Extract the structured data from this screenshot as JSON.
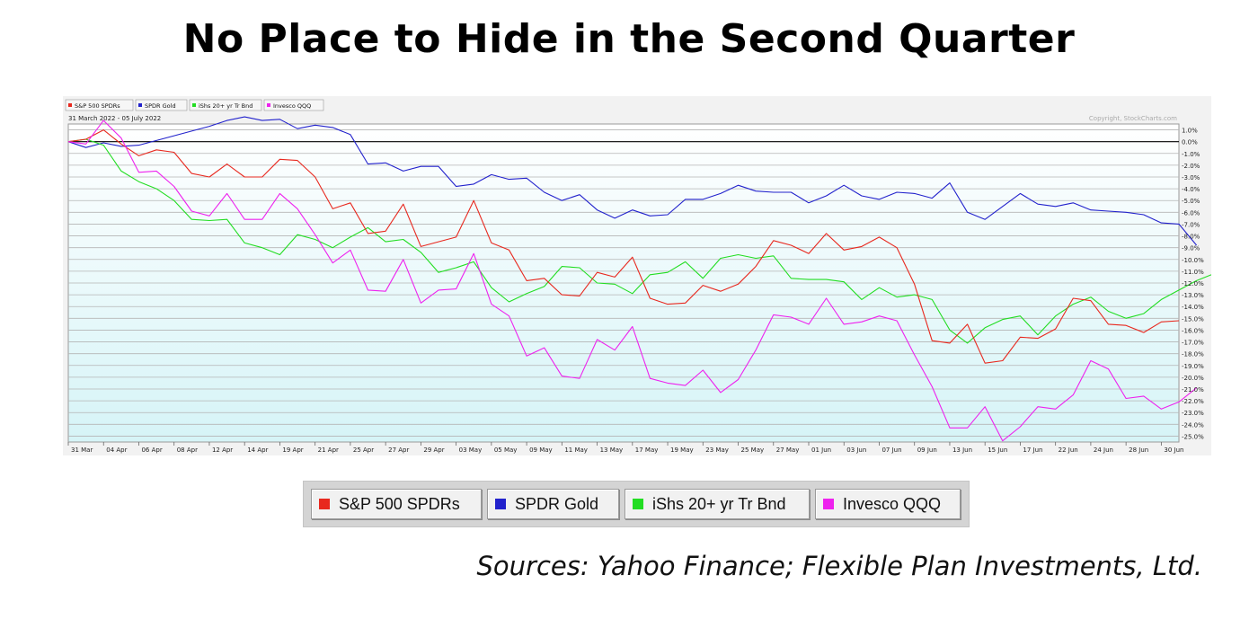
{
  "title": "No Place to Hide in the Second Quarter",
  "source": "Sources: Yahoo Finance; Flexible Plan Investments, Ltd.",
  "chart_data": {
    "type": "line",
    "date_range": "31 March 2022 - 05 July 2022",
    "copyright": "Copyright, StockCharts.com",
    "x_tick_labels": [
      "31 Mar",
      "04 Apr",
      "06 Apr",
      "08 Apr",
      "12 Apr",
      "14 Apr",
      "19 Apr",
      "21 Apr",
      "25 Apr",
      "27 Apr",
      "29 Apr",
      "03 May",
      "05 May",
      "09 May",
      "11 May",
      "13 May",
      "17 May",
      "19 May",
      "23 May",
      "25 May",
      "27 May",
      "01 Jun",
      "03 Jun",
      "07 Jun",
      "09 Jun",
      "13 Jun",
      "15 Jun",
      "17 Jun",
      "22 Jun",
      "24 Jun",
      "28 Jun",
      "30 Jun"
    ],
    "y_tick_labels": [
      "1.0%",
      "0.0%",
      "-1.0%",
      "-2.0%",
      "-3.0%",
      "-4.0%",
      "-5.0%",
      "-6.0%",
      "-7.0%",
      "-8.0%",
      "-9.0%",
      "-10.0%",
      "-11.0%",
      "-12.0%",
      "-13.0%",
      "-14.0%",
      "-15.0%",
      "-16.0%",
      "-17.0%",
      "-18.0%",
      "-19.0%",
      "-20.0%",
      "-21.0%",
      "-22.0%",
      "-23.0%",
      "-24.0%",
      "-25.0%"
    ],
    "ylim": [
      -25.5,
      1.5
    ],
    "grid": true,
    "legend_position": "top-left",
    "series": [
      {
        "name": "S&P 500 SPDRs",
        "color": "#e8281e",
        "values": [
          0,
          0.2,
          1,
          -0.2,
          -1.2,
          -0.7,
          -0.9,
          -2.7,
          -3,
          -1.9,
          -3,
          -3,
          -1.5,
          -1.6,
          -3,
          -5.7,
          -5.2,
          -7.8,
          -7.6,
          -5.3,
          -8.9,
          -8.5,
          -8.1,
          -5,
          -8.6,
          -9.2,
          -11.8,
          -11.6,
          -13,
          -13.1,
          -11.1,
          -11.5,
          -9.8,
          -13.3,
          -13.8,
          -13.7,
          -12.2,
          -12.7,
          -12.1,
          -10.6,
          -8.4,
          -8.8,
          -9.5,
          -7.8,
          -9.2,
          -8.9,
          -8.1,
          -9,
          -12.1,
          -16.9,
          -17.1,
          -15.5,
          -18.8,
          -18.6,
          -16.6,
          -16.7,
          -15.9,
          -13.3,
          -13.5,
          -15.5,
          -15.6,
          -16.2,
          -15.3,
          -15.2
        ]
      },
      {
        "name": "SPDR Gold",
        "color": "#2222cc",
        "values": [
          0,
          -0.5,
          -0.1,
          -0.4,
          -0.3,
          0.1,
          0.5,
          0.9,
          1.3,
          1.8,
          2.1,
          1.8,
          1.9,
          1.1,
          1.4,
          1.2,
          0.6,
          -1.9,
          -1.8,
          -2.5,
          -2.1,
          -2.1,
          -3.8,
          -3.6,
          -2.8,
          -3.2,
          -3.1,
          -4.3,
          -5,
          -4.5,
          -5.8,
          -6.5,
          -5.8,
          -6.3,
          -6.2,
          -4.9,
          -4.9,
          -4.4,
          -3.7,
          -4.2,
          -4.3,
          -4.3,
          -5.2,
          -4.6,
          -3.7,
          -4.6,
          -4.9,
          -4.3,
          -4.4,
          -4.8,
          -3.5,
          -6,
          -6.6,
          -5.5,
          -4.4,
          -5.3,
          -5.5,
          -5.2,
          -5.8,
          -5.9,
          -6,
          -6.2,
          -6.9,
          -7,
          -8.8
        ]
      },
      {
        "name": "iShs 20+ yr Tr Bnd",
        "color": "#22dd22",
        "values": [
          0,
          0.2,
          -0.3,
          -2.5,
          -3.4,
          -4,
          -5,
          -6.6,
          -6.7,
          -6.6,
          -8.6,
          -9,
          -9.6,
          -7.9,
          -8.3,
          -9,
          -8.1,
          -7.3,
          -8.5,
          -8.3,
          -9.4,
          -11.1,
          -10.7,
          -10.2,
          -12.4,
          -13.6,
          -12.9,
          -12.3,
          -10.6,
          -10.7,
          -12,
          -12.1,
          -12.9,
          -11.3,
          -11.1,
          -10.2,
          -11.6,
          -9.9,
          -9.6,
          -9.9,
          -9.7,
          -11.6,
          -11.7,
          -11.7,
          -11.9,
          -13.4,
          -12.4,
          -13.2,
          -13,
          -13.4,
          -16,
          -17.1,
          -15.8,
          -15.1,
          -14.8,
          -16.4,
          -14.8,
          -13.8,
          -13.2,
          -14.4,
          -15,
          -14.6,
          -13.4,
          -12.6,
          -11.8,
          -11.2
        ]
      },
      {
        "name": "Invesco QQQ",
        "color": "#ee22ee",
        "values": [
          0,
          -0.2,
          1.8,
          0.3,
          -2.6,
          -2.5,
          -3.8,
          -5.9,
          -6.3,
          -4.4,
          -6.6,
          -6.6,
          -4.4,
          -5.7,
          -7.9,
          -10.3,
          -9.2,
          -12.6,
          -12.7,
          -10,
          -13.7,
          -12.6,
          -12.5,
          -9.5,
          -13.8,
          -14.8,
          -18.2,
          -17.5,
          -19.9,
          -20.1,
          -16.8,
          -17.7,
          -15.7,
          -20.1,
          -20.5,
          -20.7,
          -19.4,
          -21.3,
          -20.2,
          -17.7,
          -14.7,
          -14.9,
          -15.5,
          -13.3,
          -15.5,
          -15.3,
          -14.8,
          -15.2,
          -18.1,
          -20.8,
          -24.3,
          -24.3,
          -22.5,
          -25.4,
          -24.2,
          -22.5,
          -22.7,
          -21.5,
          -18.6,
          -19.3,
          -21.8,
          -21.6,
          -22.7,
          -22.1,
          -20.9
        ]
      }
    ]
  }
}
